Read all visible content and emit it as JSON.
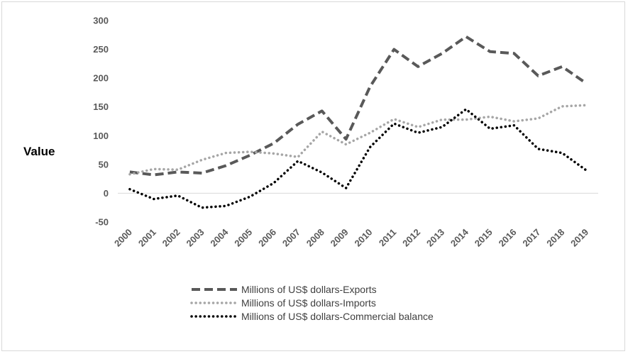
{
  "chart_data": {
    "type": "line",
    "title": "",
    "xlabel": "",
    "ylabel": "Value",
    "ylim": [
      -50,
      300
    ],
    "yticks": [
      -50,
      0,
      50,
      100,
      150,
      200,
      250,
      300
    ],
    "grid": false,
    "legend_position": "bottom",
    "categories": [
      "2000",
      "2001",
      "2002",
      "2003",
      "2004",
      "2005",
      "2006",
      "2007",
      "2008",
      "2009",
      "2010",
      "2011",
      "2012",
      "2013",
      "2014",
      "2015",
      "2016",
      "2017",
      "2018",
      "2019"
    ],
    "series": [
      {
        "name": "Millions of US$ dollars-Exports",
        "style": "dashed",
        "color": "#595959",
        "values": [
          37,
          32,
          37,
          35,
          48,
          66,
          87,
          120,
          143,
          94,
          185,
          250,
          220,
          243,
          272,
          246,
          243,
          204,
          220,
          191
        ]
      },
      {
        "name": "Millions of US$ dollars-Imports",
        "style": "dotted",
        "color": "#a6a6a6",
        "values": [
          33,
          42,
          41,
          58,
          70,
          72,
          69,
          63,
          107,
          85,
          105,
          129,
          115,
          128,
          128,
          133,
          125,
          130,
          151,
          153
        ]
      },
      {
        "name": "Millions of US$ dollars-Commercial balance",
        "style": "dotted",
        "color": "#000000",
        "values": [
          7,
          -10,
          -4,
          -25,
          -22,
          -6,
          18,
          56,
          36,
          9,
          80,
          121,
          105,
          115,
          146,
          112,
          118,
          77,
          70,
          40
        ]
      }
    ]
  }
}
